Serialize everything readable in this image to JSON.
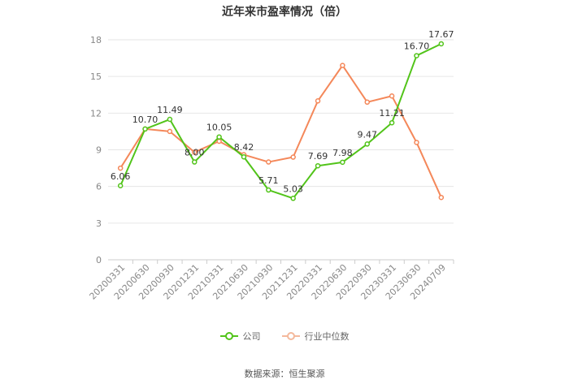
{
  "chart_data": {
    "type": "line",
    "title": "近年来市盈率情况（倍）",
    "categories": [
      "20200331",
      "20200630",
      "20200930",
      "20201231",
      "20210331",
      "20210630",
      "20210930",
      "20211231",
      "20220331",
      "20220630",
      "20220930",
      "20230331",
      "20230630",
      "20240709"
    ],
    "series": [
      {
        "name": "公司",
        "color": "#52c41a",
        "values": [
          6.06,
          10.7,
          11.49,
          8.0,
          10.05,
          8.42,
          5.71,
          5.03,
          7.69,
          7.98,
          9.47,
          11.21,
          16.7,
          17.67
        ],
        "show_labels": true
      },
      {
        "name": "行业中位数",
        "color": "#f4885a",
        "values": [
          7.5,
          10.7,
          10.5,
          8.8,
          9.7,
          8.6,
          8.0,
          8.4,
          13.0,
          15.9,
          12.9,
          13.4,
          9.6,
          5.1
        ],
        "show_labels": false
      }
    ],
    "value_labels": [
      "6.06",
      "10.70",
      "11.49",
      "8.00",
      "10.05",
      "8.42",
      "5.71",
      "5.03",
      "7.69",
      "7.98",
      "9.47",
      "11.21",
      "16.70",
      "17.67"
    ],
    "ylim": [
      0,
      18
    ],
    "yticks": [
      0,
      3,
      6,
      9,
      12,
      15,
      18
    ],
    "grid": true,
    "legend_position": "bottom"
  },
  "source": "数据来源：恒生聚源"
}
